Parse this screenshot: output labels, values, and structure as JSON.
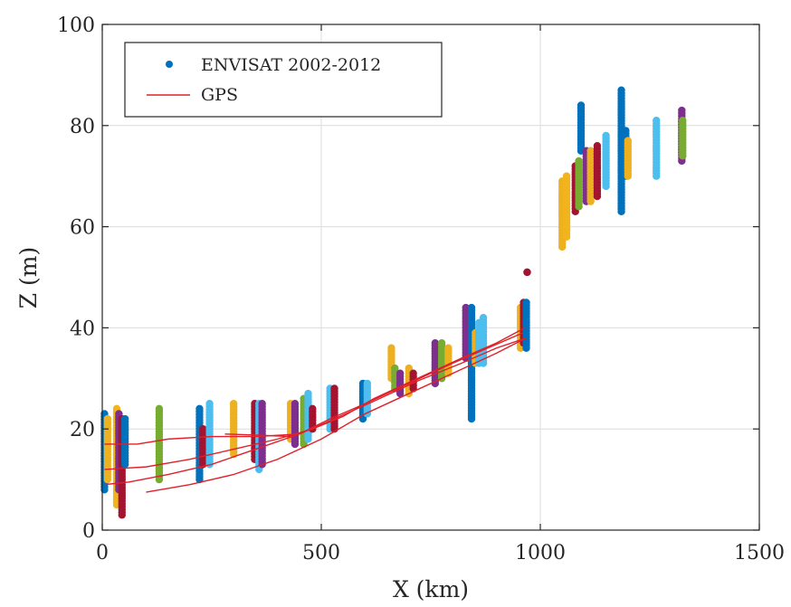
{
  "chart_data": {
    "type": "scatter",
    "title": "",
    "xlabel": "X (km)",
    "ylabel": "Z (m)",
    "xlim": [
      0,
      1500
    ],
    "ylim": [
      0,
      100
    ],
    "xticks": [
      0,
      500,
      1000,
      1500
    ],
    "yticks": [
      0,
      20,
      40,
      60,
      80,
      100
    ],
    "grid": true,
    "legend": {
      "placement": "top-left",
      "entries": [
        {
          "label": "ENVISAT 2002-2012",
          "marker": "dot",
          "color": "#0072BD"
        },
        {
          "label": "GPS",
          "marker": "line",
          "color": "#E0202A"
        }
      ]
    },
    "colors": {
      "blue": "#0072BD",
      "orange": "#EDB120",
      "yellow": "#F2B41C",
      "purple": "#7E2F8E",
      "green": "#77AC30",
      "lightblue": "#4DBEEE",
      "red": "#A2142F",
      "gps": "#E0202A"
    },
    "envisat_tracks": [
      {
        "x": 5,
        "ymin": 8,
        "ymax": 23,
        "color": "blue"
      },
      {
        "x": 12,
        "ymin": 10,
        "ymax": 22,
        "color": "orange"
      },
      {
        "x": 33,
        "ymin": 5,
        "ymax": 24,
        "color": "yellow"
      },
      {
        "x": 38,
        "ymin": 8,
        "ymax": 23,
        "color": "purple"
      },
      {
        "x": 45,
        "ymin": 3,
        "ymax": 22,
        "color": "red"
      },
      {
        "x": 52,
        "ymin": 13,
        "ymax": 22,
        "color": "blue"
      },
      {
        "x": 130,
        "ymin": 10,
        "ymax": 24,
        "color": "green"
      },
      {
        "x": 222,
        "ymin": 10,
        "ymax": 24,
        "color": "blue"
      },
      {
        "x": 230,
        "ymin": 13,
        "ymax": 20,
        "color": "red"
      },
      {
        "x": 245,
        "ymin": 13,
        "ymax": 25,
        "color": "lightblue"
      },
      {
        "x": 300,
        "ymin": 15,
        "ymax": 25,
        "color": "orange"
      },
      {
        "x": 348,
        "ymin": 14,
        "ymax": 25,
        "color": "red"
      },
      {
        "x": 358,
        "ymin": 12,
        "ymax": 25,
        "color": "lightblue"
      },
      {
        "x": 365,
        "ymin": 13,
        "ymax": 25,
        "color": "purple"
      },
      {
        "x": 430,
        "ymin": 18,
        "ymax": 25,
        "color": "orange"
      },
      {
        "x": 440,
        "ymin": 17,
        "ymax": 25,
        "color": "purple"
      },
      {
        "x": 460,
        "ymin": 17,
        "ymax": 26,
        "color": "green"
      },
      {
        "x": 470,
        "ymin": 18,
        "ymax": 27,
        "color": "lightblue"
      },
      {
        "x": 480,
        "ymin": 20,
        "ymax": 24,
        "color": "red"
      },
      {
        "x": 520,
        "ymin": 20,
        "ymax": 28,
        "color": "lightblue"
      },
      {
        "x": 530,
        "ymin": 20,
        "ymax": 28,
        "color": "red"
      },
      {
        "x": 595,
        "ymin": 22,
        "ymax": 29,
        "color": "blue"
      },
      {
        "x": 605,
        "ymin": 23,
        "ymax": 29,
        "color": "lightblue"
      },
      {
        "x": 660,
        "ymin": 30,
        "ymax": 36,
        "color": "orange"
      },
      {
        "x": 668,
        "ymin": 28,
        "ymax": 32,
        "color": "green"
      },
      {
        "x": 680,
        "ymin": 27,
        "ymax": 31,
        "color": "purple"
      },
      {
        "x": 700,
        "ymin": 27,
        "ymax": 32,
        "color": "orange"
      },
      {
        "x": 710,
        "ymin": 28,
        "ymax": 31,
        "color": "red"
      },
      {
        "x": 760,
        "ymin": 29,
        "ymax": 37,
        "color": "purple"
      },
      {
        "x": 775,
        "ymin": 30,
        "ymax": 37,
        "color": "green"
      },
      {
        "x": 790,
        "ymin": 31,
        "ymax": 36,
        "color": "orange"
      },
      {
        "x": 830,
        "ymin": 34,
        "ymax": 44,
        "color": "purple"
      },
      {
        "x": 843,
        "ymin": 22,
        "ymax": 44,
        "color": "blue"
      },
      {
        "x": 852,
        "ymin": 33,
        "ymax": 39,
        "color": "orange"
      },
      {
        "x": 860,
        "ymin": 33,
        "ymax": 41,
        "color": "lightblue"
      },
      {
        "x": 870,
        "ymin": 33,
        "ymax": 42,
        "color": "lightblue"
      },
      {
        "x": 955,
        "ymin": 36,
        "ymax": 44,
        "color": "orange"
      },
      {
        "x": 962,
        "ymin": 37,
        "ymax": 45,
        "color": "red"
      },
      {
        "x": 968,
        "ymin": 36,
        "ymax": 45,
        "color": "blue"
      },
      {
        "x": 970,
        "ymin": 51,
        "ymax": 51,
        "color": "red"
      },
      {
        "x": 1050,
        "ymin": 56,
        "ymax": 69,
        "color": "orange"
      },
      {
        "x": 1060,
        "ymin": 58,
        "ymax": 70,
        "color": "yellow"
      },
      {
        "x": 1080,
        "ymin": 63,
        "ymax": 72,
        "color": "red"
      },
      {
        "x": 1088,
        "ymin": 64,
        "ymax": 73,
        "color": "green"
      },
      {
        "x": 1093,
        "ymin": 75,
        "ymax": 84,
        "color": "blue"
      },
      {
        "x": 1105,
        "ymin": 65,
        "ymax": 75,
        "color": "purple"
      },
      {
        "x": 1115,
        "ymin": 65,
        "ymax": 75,
        "color": "orange"
      },
      {
        "x": 1130,
        "ymin": 66,
        "ymax": 76,
        "color": "red"
      },
      {
        "x": 1150,
        "ymin": 68,
        "ymax": 78,
        "color": "lightblue"
      },
      {
        "x": 1185,
        "ymin": 63,
        "ymax": 87,
        "color": "blue"
      },
      {
        "x": 1195,
        "ymin": 70,
        "ymax": 79,
        "color": "blue"
      },
      {
        "x": 1200,
        "ymin": 70,
        "ymax": 77,
        "color": "orange"
      },
      {
        "x": 1265,
        "ymin": 70,
        "ymax": 81,
        "color": "lightblue"
      },
      {
        "x": 1323,
        "ymin": 73,
        "ymax": 83,
        "color": "purple"
      },
      {
        "x": 1325,
        "ymin": 74,
        "ymax": 81,
        "color": "green"
      }
    ],
    "gps_series": [
      {
        "name": "GPS",
        "x": [
          5,
          60,
          150,
          250,
          350,
          450,
          520,
          600,
          700,
          800,
          880,
          960
        ],
        "y": [
          9,
          9.5,
          11,
          13,
          16,
          19,
          22,
          25,
          29,
          33,
          36,
          39
        ]
      },
      {
        "name": "GPS",
        "x": [
          5,
          100,
          200,
          300,
          400,
          480,
          550,
          620,
          720,
          820,
          900,
          965
        ],
        "y": [
          12,
          12.5,
          14,
          16,
          18,
          20,
          22.5,
          26,
          30,
          34,
          37,
          40
        ]
      },
      {
        "name": "GPS",
        "x": [
          5,
          80,
          150,
          250,
          350,
          450,
          530,
          620,
          720,
          820,
          900,
          968
        ],
        "y": [
          17,
          17,
          18,
          18.5,
          18.5,
          19,
          22,
          25.5,
          29.5,
          33,
          36,
          38
        ]
      },
      {
        "name": "GPS",
        "x": [
          280,
          350,
          430
        ],
        "y": [
          19,
          18.8,
          18.5
        ]
      },
      {
        "name": "GPS",
        "x": [
          100,
          200,
          300,
          400,
          500,
          600,
          700,
          800,
          900,
          968
        ],
        "y": [
          7.5,
          9,
          11,
          14,
          18,
          23,
          27,
          31,
          35,
          38
        ]
      }
    ]
  }
}
